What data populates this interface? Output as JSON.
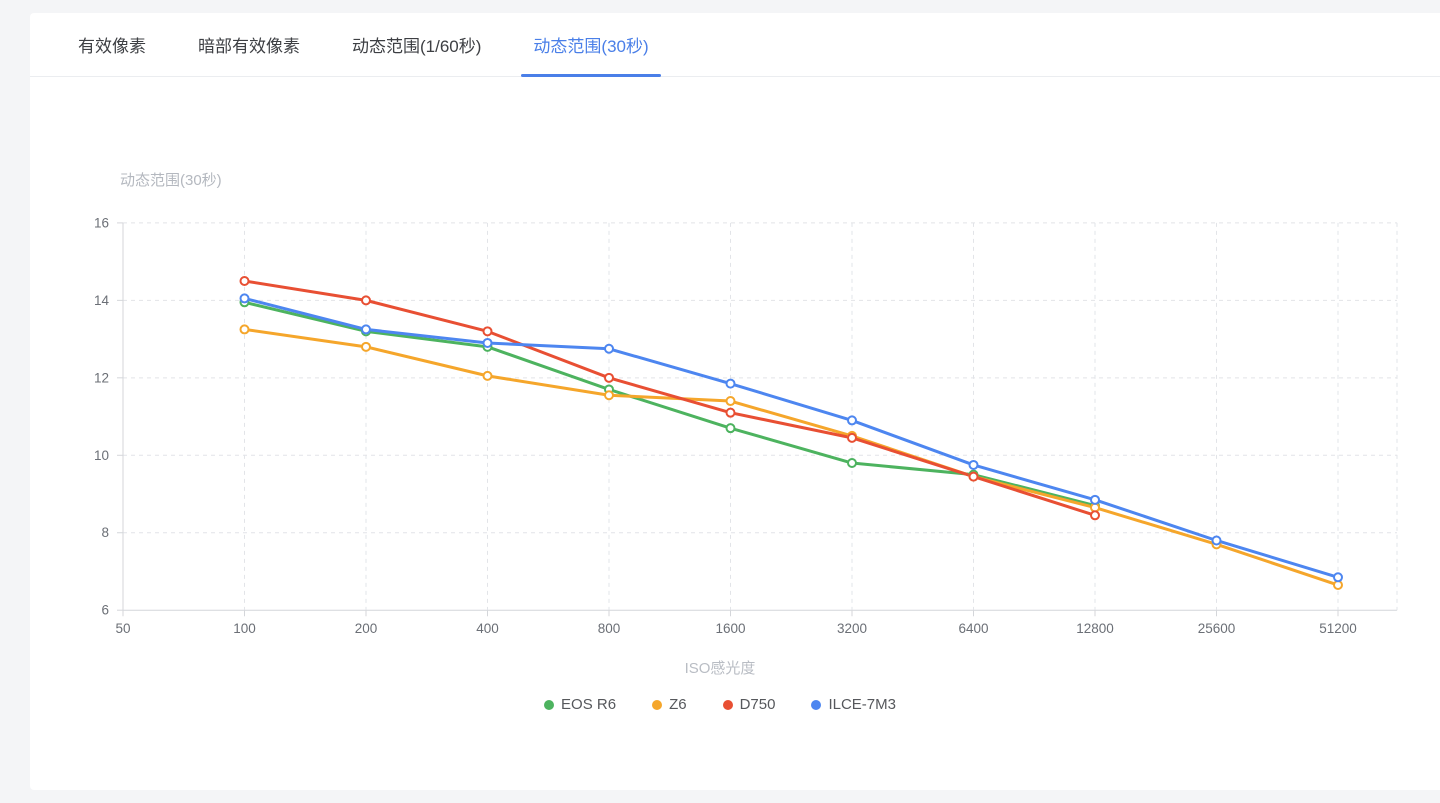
{
  "tabs": [
    {
      "label": "有效像素",
      "active": false
    },
    {
      "label": "暗部有效像素",
      "active": false
    },
    {
      "label": "动态范围(1/60秒)",
      "active": false
    },
    {
      "label": "动态范围(30秒)",
      "active": true
    }
  ],
  "chart_data": {
    "type": "line",
    "title": "动态范围(30秒)",
    "xlabel": "ISO感光度",
    "ylabel": "",
    "categories": [
      50,
      100,
      200,
      400,
      800,
      1600,
      3200,
      6400,
      12800,
      25600,
      51200
    ],
    "ylim": [
      6,
      16
    ],
    "ytick_step": 2,
    "grid": "dashed",
    "legend_position": "bottom",
    "marker": "open-circle",
    "series": [
      {
        "name": "EOS R6",
        "color": "#4db35f",
        "x": [
          100,
          200,
          400,
          800,
          1600,
          3200,
          6400,
          12800
        ],
        "values": [
          13.95,
          13.2,
          12.8,
          11.7,
          10.7,
          9.8,
          9.5,
          8.7
        ]
      },
      {
        "name": "Z6",
        "color": "#f5a62b",
        "x": [
          100,
          200,
          400,
          800,
          1600,
          3200,
          6400,
          12800,
          25600,
          51200
        ],
        "values": [
          13.25,
          12.8,
          12.05,
          11.55,
          11.4,
          10.5,
          9.45,
          8.65,
          7.7,
          6.65
        ]
      },
      {
        "name": "D750",
        "color": "#e84f33",
        "x": [
          100,
          200,
          400,
          800,
          1600,
          3200,
          6400,
          12800
        ],
        "values": [
          14.5,
          14.0,
          13.2,
          12.0,
          11.1,
          10.45,
          9.45,
          8.45
        ]
      },
      {
        "name": "ILCE-7M3",
        "color": "#4d86f0",
        "x": [
          100,
          200,
          400,
          800,
          1600,
          3200,
          6400,
          12800,
          25600,
          51200
        ],
        "values": [
          14.05,
          13.25,
          12.9,
          12.75,
          11.85,
          10.9,
          9.75,
          8.85,
          7.8,
          6.85
        ]
      }
    ]
  },
  "axis_colors": {
    "tick_label": "#6b6f76",
    "grid": "#e2e4e8",
    "axis_line": "#d4d6da"
  },
  "accent_color": "#4a7fe8"
}
